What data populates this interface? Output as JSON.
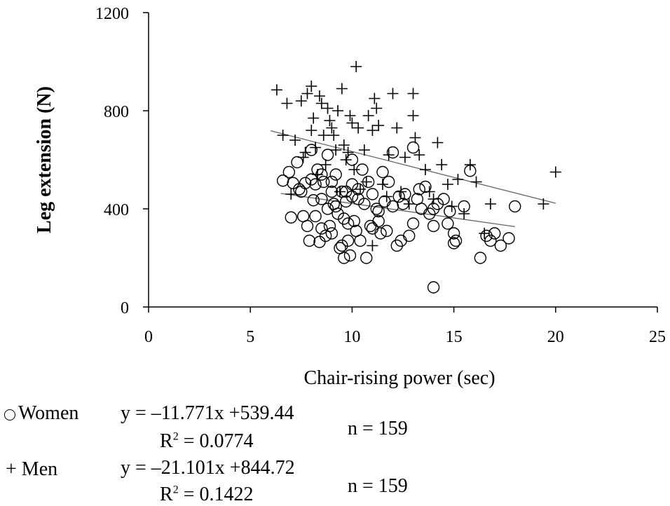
{
  "chart_data": {
    "type": "scatter",
    "xlabel": "Chair-rising power (sec)",
    "ylabel": "Leg extension (N)",
    "xlim": [
      0,
      25
    ],
    "ylim": [
      0,
      1200
    ],
    "x_ticks": [
      "0",
      "5",
      "10",
      "15",
      "20",
      "25"
    ],
    "y_ticks": [
      "0",
      "400",
      "800",
      "1200"
    ],
    "grid": false,
    "legend_position": "bottom-left",
    "series": [
      {
        "name": "Women",
        "marker": "circle",
        "trend": {
          "x": [
            6.5,
            18
          ],
          "y": [
            462.9,
            327.6
          ]
        },
        "points": [
          [
            6.6,
            515
          ],
          [
            6.9,
            550
          ],
          [
            7.0,
            365
          ],
          [
            7.1,
            505
          ],
          [
            7.3,
            590
          ],
          [
            7.4,
            480
          ],
          [
            7.5,
            470
          ],
          [
            7.6,
            370
          ],
          [
            7.7,
            505
          ],
          [
            7.8,
            330
          ],
          [
            7.9,
            270
          ],
          [
            8.0,
            640
          ],
          [
            8.0,
            520
          ],
          [
            8.1,
            435
          ],
          [
            8.2,
            500
          ],
          [
            8.2,
            370
          ],
          [
            8.3,
            560
          ],
          [
            8.4,
            265
          ],
          [
            8.5,
            440
          ],
          [
            8.5,
            320
          ],
          [
            8.6,
            510
          ],
          [
            8.7,
            290
          ],
          [
            8.8,
            400
          ],
          [
            8.8,
            620
          ],
          [
            8.9,
            330
          ],
          [
            9.0,
            470
          ],
          [
            9.0,
            300
          ],
          [
            9.1,
            420
          ],
          [
            9.2,
            540
          ],
          [
            9.2,
            410
          ],
          [
            9.3,
            380
          ],
          [
            9.4,
            240
          ],
          [
            9.5,
            470
          ],
          [
            9.5,
            250
          ],
          [
            9.6,
            200
          ],
          [
            9.6,
            360
          ],
          [
            9.7,
            430
          ],
          [
            9.8,
            340
          ],
          [
            9.8,
            270
          ],
          [
            9.9,
            210
          ],
          [
            10.0,
            600
          ],
          [
            10.0,
            500
          ],
          [
            10.0,
            450
          ],
          [
            10.1,
            350
          ],
          [
            10.2,
            310
          ],
          [
            10.3,
            480
          ],
          [
            10.4,
            270
          ],
          [
            10.5,
            560
          ],
          [
            10.6,
            420
          ],
          [
            10.7,
            200
          ],
          [
            10.8,
            510
          ],
          [
            10.9,
            330
          ],
          [
            11.0,
            460
          ],
          [
            11.0,
            320
          ],
          [
            11.2,
            400
          ],
          [
            11.3,
            350
          ],
          [
            11.4,
            300
          ],
          [
            11.5,
            550
          ],
          [
            11.6,
            430
          ],
          [
            11.7,
            310
          ],
          [
            11.8,
            510
          ],
          [
            12.0,
            630
          ],
          [
            12.0,
            410
          ],
          [
            12.2,
            250
          ],
          [
            12.4,
            270
          ],
          [
            12.5,
            420
          ],
          [
            12.6,
            460
          ],
          [
            12.8,
            290
          ],
          [
            13.0,
            650
          ],
          [
            13.0,
            340
          ],
          [
            13.2,
            440
          ],
          [
            13.4,
            400
          ],
          [
            13.6,
            490
          ],
          [
            13.8,
            380
          ],
          [
            14.0,
            400
          ],
          [
            14.0,
            330
          ],
          [
            14.0,
            80
          ],
          [
            14.2,
            420
          ],
          [
            14.5,
            440
          ],
          [
            14.7,
            340
          ],
          [
            14.8,
            390
          ],
          [
            15.0,
            300
          ],
          [
            15.0,
            260
          ],
          [
            15.1,
            270
          ],
          [
            15.5,
            410
          ],
          [
            15.8,
            555
          ],
          [
            16.3,
            200
          ],
          [
            16.6,
            290
          ],
          [
            16.8,
            270
          ],
          [
            17.0,
            300
          ],
          [
            17.3,
            250
          ],
          [
            17.7,
            280
          ],
          [
            18.0,
            410
          ],
          [
            8.5,
            540
          ],
          [
            9.0,
            510
          ],
          [
            9.7,
            470
          ],
          [
            10.3,
            440
          ],
          [
            11.3,
            390
          ],
          [
            12.3,
            450
          ],
          [
            13.3,
            480
          ]
        ]
      },
      {
        "name": "Men",
        "marker": "plus",
        "trend": {
          "x": [
            6,
            20
          ],
          "y": [
            718.1,
            422.7
          ]
        },
        "points": [
          [
            6.3,
            885
          ],
          [
            6.6,
            700
          ],
          [
            6.8,
            830
          ],
          [
            7.0,
            460
          ],
          [
            7.2,
            680
          ],
          [
            7.5,
            840
          ],
          [
            7.6,
            610
          ],
          [
            7.8,
            870
          ],
          [
            8.0,
            900
          ],
          [
            8.0,
            720
          ],
          [
            8.1,
            770
          ],
          [
            8.2,
            650
          ],
          [
            8.3,
            540
          ],
          [
            8.4,
            860
          ],
          [
            8.5,
            830
          ],
          [
            8.6,
            700
          ],
          [
            8.8,
            810
          ],
          [
            8.9,
            760
          ],
          [
            9.0,
            730
          ],
          [
            9.1,
            700
          ],
          [
            9.2,
            640
          ],
          [
            9.3,
            800
          ],
          [
            9.4,
            470
          ],
          [
            9.5,
            890
          ],
          [
            9.6,
            660
          ],
          [
            9.8,
            630
          ],
          [
            9.9,
            780
          ],
          [
            10.0,
            750
          ],
          [
            10.1,
            560
          ],
          [
            10.2,
            980
          ],
          [
            10.3,
            730
          ],
          [
            10.4,
            480
          ],
          [
            10.6,
            640
          ],
          [
            10.7,
            510
          ],
          [
            10.8,
            780
          ],
          [
            11.0,
            720
          ],
          [
            11.1,
            850
          ],
          [
            11.2,
            810
          ],
          [
            11.3,
            740
          ],
          [
            11.5,
            500
          ],
          [
            11.7,
            450
          ],
          [
            11.8,
            620
          ],
          [
            12.0,
            870
          ],
          [
            12.2,
            730
          ],
          [
            12.4,
            470
          ],
          [
            12.6,
            610
          ],
          [
            12.8,
            420
          ],
          [
            13.0,
            870
          ],
          [
            13.0,
            780
          ],
          [
            13.1,
            690
          ],
          [
            13.3,
            620
          ],
          [
            13.6,
            560
          ],
          [
            13.8,
            470
          ],
          [
            14.0,
            440
          ],
          [
            14.2,
            670
          ],
          [
            14.4,
            580
          ],
          [
            14.7,
            500
          ],
          [
            14.9,
            410
          ],
          [
            15.2,
            520
          ],
          [
            15.5,
            380
          ],
          [
            15.8,
            580
          ],
          [
            16.1,
            510
          ],
          [
            16.5,
            300
          ],
          [
            16.8,
            420
          ],
          [
            19.4,
            420
          ],
          [
            20.0,
            550
          ],
          [
            11.0,
            250
          ],
          [
            7.7,
            630
          ],
          [
            8.7,
            580
          ],
          [
            9.7,
            600
          ]
        ]
      }
    ]
  },
  "legend": {
    "women": {
      "label": "Women",
      "equation": "y = –11.771x +539.44",
      "r2_prefix": "R",
      "r2_sup": "2",
      "r2_value": " = 0.0774",
      "n": "n = 159"
    },
    "men": {
      "label": "Men",
      "equation": "y = –21.101x +844.72",
      "r2_prefix": "R",
      "r2_sup": "2",
      "r2_value": " = 0.1422",
      "n": "n = 159"
    }
  }
}
